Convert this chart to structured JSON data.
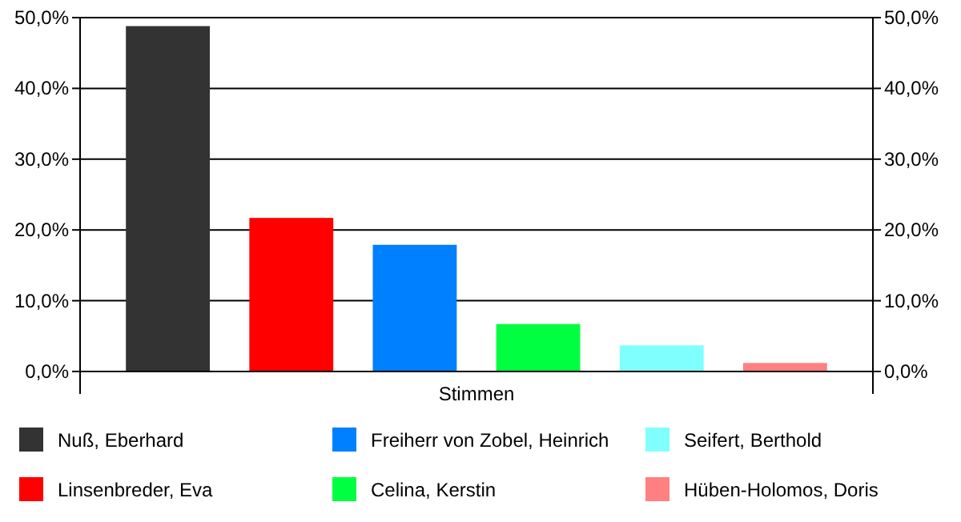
{
  "chart_data": {
    "type": "bar",
    "categories": [
      "Stimmen"
    ],
    "series": [
      {
        "name": "Nuß, Eberhard",
        "color": "#333333",
        "values": [
          48.8
        ]
      },
      {
        "name": "Linsenbreder, Eva",
        "color": "#ff0000",
        "values": [
          21.7
        ]
      },
      {
        "name": "Freiherr von Zobel, Heinrich",
        "color": "#0080ff",
        "values": [
          17.9
        ]
      },
      {
        "name": "Celina, Kerstin",
        "color": "#00ff40",
        "values": [
          6.7
        ]
      },
      {
        "name": "Seifert, Berthold",
        "color": "#80ffff",
        "values": [
          3.7
        ]
      },
      {
        "name": "Hüben-Holomos, Doris",
        "color": "#ff8080",
        "values": [
          1.2
        ]
      }
    ],
    "ylim": [
      0,
      50
    ],
    "yticks": [
      {
        "value": 0,
        "label": "0,0%"
      },
      {
        "value": 10,
        "label": "10,0%"
      },
      {
        "value": 20,
        "label": "20,0%"
      },
      {
        "value": 30,
        "label": "30,0%"
      },
      {
        "value": 40,
        "label": "40,0%"
      },
      {
        "value": 50,
        "label": "50,0%"
      }
    ],
    "grid": "y",
    "legend": "bottom"
  }
}
